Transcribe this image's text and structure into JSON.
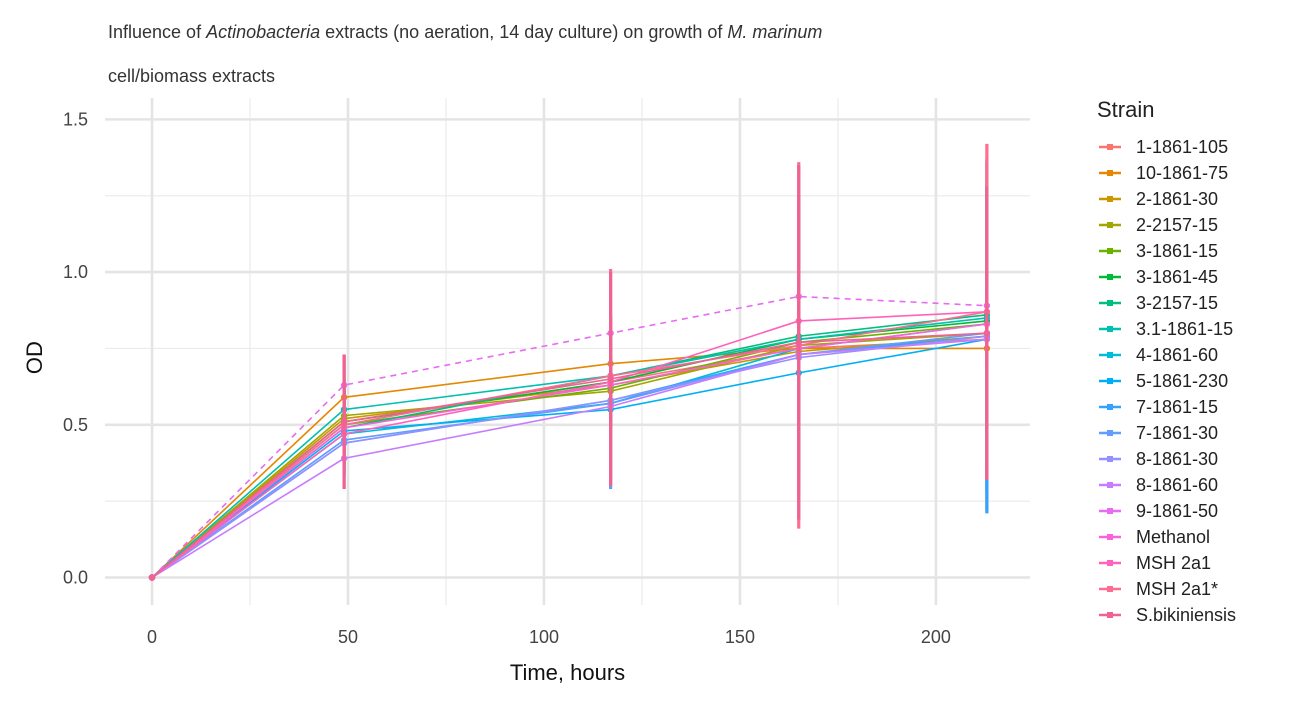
{
  "title": {
    "prefix": "Influence of ",
    "italic1": "Actinobacteria",
    "middle": " extracts (no aeration, 14 day culture) on growth of ",
    "italic2": "M. marinum"
  },
  "subtitle": "cell/biomass extracts",
  "chart_data": {
    "type": "line",
    "xlabel": "Time, hours",
    "ylabel": "OD",
    "xlim": [
      -12,
      224
    ],
    "ylim": [
      -0.09,
      1.57
    ],
    "x_ticks": [
      0,
      50,
      100,
      150,
      200
    ],
    "x_tick_labels": [
      "0",
      "50",
      "100",
      "150",
      "200"
    ],
    "y_ticks": [
      0.0,
      0.5,
      1.0,
      1.5
    ],
    "y_tick_labels": [
      "0.0",
      "0.5",
      "1.0",
      "1.5"
    ],
    "x": [
      0,
      49,
      117,
      165,
      213
    ],
    "grid": true,
    "legend_title": "Strain",
    "legend_position": "right",
    "series": [
      {
        "name": "1-1861-105",
        "color": "#F8766D",
        "values": [
          0,
          0.51,
          0.64,
          0.75,
          0.78
        ],
        "err": [
          0,
          0.1,
          0.08,
          0.06,
          0.06
        ]
      },
      {
        "name": "10-1861-75",
        "color": "#E58700",
        "values": [
          0,
          0.59,
          0.7,
          0.75,
          0.75
        ],
        "err": [
          0,
          0.14,
          0.08,
          0.05,
          0.06
        ]
      },
      {
        "name": "2-1861-30",
        "color": "#C99800",
        "values": [
          0,
          0.52,
          0.63,
          0.74,
          0.79
        ],
        "err": [
          0,
          0.12,
          0.06,
          0.05,
          0.57
        ]
      },
      {
        "name": "2-2157-15",
        "color": "#A3A500",
        "values": [
          0,
          0.53,
          0.61,
          0.76,
          0.8
        ],
        "err": [
          0,
          0.1,
          0.06,
          0.05,
          0.1
        ]
      },
      {
        "name": "3-1861-15",
        "color": "#6BB100",
        "values": [
          0,
          0.5,
          0.62,
          0.77,
          0.83
        ],
        "err": [
          0,
          0.1,
          0.06,
          0.05,
          0.08
        ]
      },
      {
        "name": "3-1861-45",
        "color": "#00BA38",
        "values": [
          0,
          0.51,
          0.64,
          0.78,
          0.84
        ],
        "err": [
          0,
          0.1,
          0.06,
          0.45,
          0.08
        ]
      },
      {
        "name": "3-2157-15",
        "color": "#00BF7D",
        "values": [
          0,
          0.49,
          0.66,
          0.79,
          0.86
        ],
        "err": [
          0,
          0.1,
          0.06,
          0.46,
          0.1
        ]
      },
      {
        "name": "3.1-1861-15",
        "color": "#00C0AF",
        "values": [
          0,
          0.55,
          0.66,
          0.78,
          0.85
        ],
        "err": [
          0,
          0.1,
          0.06,
          0.05,
          0.08
        ]
      },
      {
        "name": "4-1861-60",
        "color": "#00BCD8",
        "values": [
          0,
          0.47,
          0.57,
          0.75,
          0.83
        ],
        "err": [
          0,
          0.1,
          0.06,
          0.05,
          0.08
        ]
      },
      {
        "name": "5-1861-230",
        "color": "#00B0F6",
        "values": [
          0,
          0.48,
          0.55,
          0.67,
          0.78
        ],
        "err": [
          0,
          0.1,
          0.06,
          0.05,
          0.5
        ]
      },
      {
        "name": "7-1861-15",
        "color": "#35A2FF",
        "values": [
          0,
          0.44,
          0.58,
          0.73,
          0.79
        ],
        "err": [
          0,
          0.1,
          0.06,
          0.05,
          0.58
        ]
      },
      {
        "name": "7-1861-30",
        "color": "#619CFF",
        "values": [
          0,
          0.45,
          0.57,
          0.73,
          0.8
        ],
        "err": [
          0,
          0.12,
          0.28,
          0.46,
          0.08
        ]
      },
      {
        "name": "8-1861-30",
        "color": "#9590FF",
        "values": [
          0,
          0.44,
          0.58,
          0.72,
          0.79
        ],
        "err": [
          0,
          0.1,
          0.06,
          0.05,
          0.08
        ]
      },
      {
        "name": "8-1861-60",
        "color": "#C77CFF",
        "values": [
          0,
          0.39,
          0.56,
          0.73,
          0.78
        ],
        "err": [
          0,
          0.1,
          0.06,
          0.05,
          0.08
        ]
      },
      {
        "name": "9-1861-50",
        "color": "#E76BF3",
        "values": [
          0,
          0.63,
          0.8,
          0.92,
          0.89
        ],
        "err": [
          0,
          0.1,
          0.06,
          0.05,
          0.08
        ],
        "dashed": true
      },
      {
        "name": "Methanol",
        "color": "#FA62DB",
        "values": [
          0,
          0.49,
          0.63,
          0.75,
          0.83
        ],
        "err": [
          0,
          0.1,
          0.06,
          0.05,
          0.08
        ]
      },
      {
        "name": "MSH 2a1",
        "color": "#FF62BC",
        "values": [
          0,
          0.47,
          0.64,
          0.84,
          0.87
        ],
        "err": [
          0,
          0.1,
          0.06,
          0.05,
          0.08
        ]
      },
      {
        "name": "MSH 2a1*",
        "color": "#FF6C91",
        "values": [
          0,
          0.5,
          0.66,
          0.76,
          0.87
        ],
        "err": [
          0,
          0.1,
          0.35,
          0.6,
          0.55
        ]
      },
      {
        "name": "S.bikiniensis",
        "color": "#F06292",
        "values": [
          0,
          0.51,
          0.65,
          0.77,
          0.8
        ],
        "err": [
          0,
          0.22,
          0.35,
          0.58,
          0.48
        ]
      }
    ]
  }
}
